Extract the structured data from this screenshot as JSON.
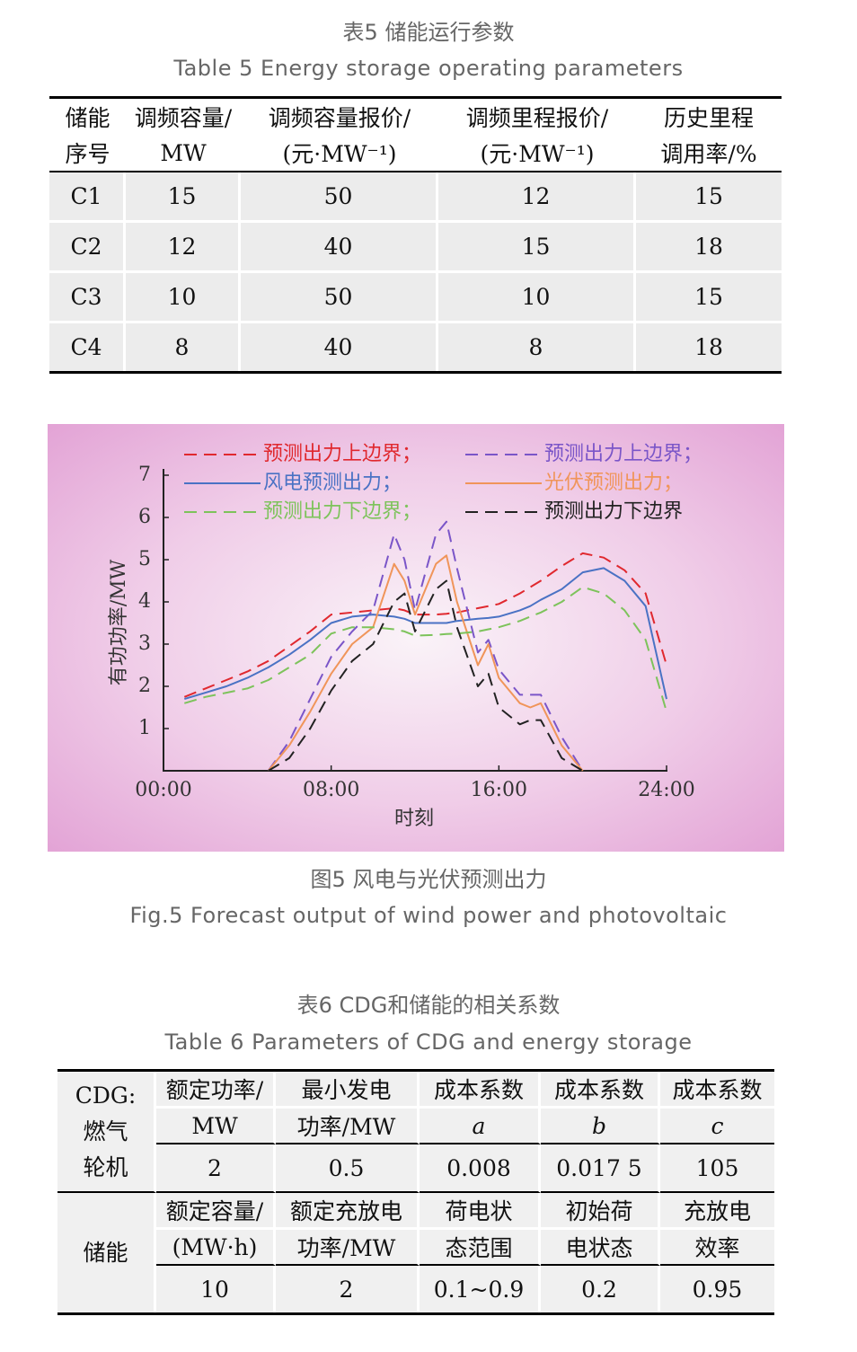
{
  "table5": {
    "caption_cn": "表5  储能运行参数",
    "caption_en": "Table 5  Energy storage operating parameters",
    "header": [
      [
        "储能",
        "调频容量/",
        "调频容量报价/",
        "调频里程报价/",
        "历史里程"
      ],
      [
        "序号",
        "MW",
        "(元·MW⁻¹)",
        "(元·MW⁻¹)",
        "调用率/%"
      ]
    ],
    "rows": [
      [
        "C1",
        15,
        50,
        12,
        15
      ],
      [
        "C2",
        12,
        40,
        15,
        18
      ],
      [
        "C3",
        10,
        50,
        10,
        15
      ],
      [
        "C4",
        8,
        40,
        8,
        18
      ]
    ]
  },
  "chart_data": {
    "type": "line",
    "xlabel": "时刻",
    "ylabel": "有功功率/MW",
    "x": [
      1,
      2,
      3,
      4,
      5,
      6,
      7,
      8,
      9,
      10,
      11,
      11.5,
      12,
      13,
      13.5,
      14,
      15,
      15.5,
      16,
      17,
      17.5,
      18,
      19,
      20,
      21,
      22,
      23,
      24
    ],
    "xlim": [
      0,
      24
    ],
    "xticks": [
      {
        "value": 0,
        "label": "00:00"
      },
      {
        "value": 8,
        "label": "08:00"
      },
      {
        "value": 16,
        "label": "16:00"
      },
      {
        "value": 24,
        "label": "24:00"
      }
    ],
    "ylim": [
      0,
      7
    ],
    "yticks": [
      1,
      2,
      3,
      4,
      5,
      6,
      7
    ],
    "series": [
      {
        "name": "预测出力上边界；",
        "color": "#e0282e",
        "dashed": true,
        "values": [
          1.75,
          1.95,
          2.15,
          2.35,
          2.6,
          2.95,
          3.3,
          3.7,
          3.75,
          3.8,
          3.85,
          3.8,
          3.7,
          3.7,
          3.72,
          3.75,
          3.85,
          3.9,
          3.95,
          4.2,
          4.35,
          4.5,
          4.85,
          5.15,
          5.05,
          4.75,
          4.2,
          2.5
        ]
      },
      {
        "name": "预测出力上边界；",
        "color": "#7a55c8",
        "dashed": true,
        "values": [
          null,
          null,
          null,
          null,
          0,
          0.7,
          1.7,
          2.7,
          3.3,
          3.8,
          5.6,
          5.0,
          3.8,
          5.6,
          5.9,
          4.8,
          2.8,
          3.1,
          2.4,
          1.8,
          1.8,
          1.8,
          0.8,
          0,
          null,
          null,
          null,
          null
        ]
      },
      {
        "name": "风电预测出力；",
        "color": "#4a72c4",
        "dashed": false,
        "values": [
          1.7,
          1.85,
          2.0,
          2.2,
          2.45,
          2.75,
          3.1,
          3.5,
          3.65,
          3.7,
          3.65,
          3.6,
          3.5,
          3.5,
          3.5,
          3.55,
          3.6,
          3.62,
          3.65,
          3.8,
          3.9,
          4.05,
          4.3,
          4.7,
          4.8,
          4.5,
          3.9,
          1.7
        ]
      },
      {
        "name": "光伏预测出力；",
        "color": "#f0955a",
        "dashed": false,
        "values": [
          null,
          null,
          null,
          null,
          0,
          0.6,
          1.4,
          2.3,
          3.0,
          3.4,
          4.9,
          4.5,
          3.7,
          4.9,
          5.1,
          4.0,
          2.5,
          3.0,
          2.2,
          1.6,
          1.5,
          1.6,
          0.6,
          0,
          null,
          null,
          null,
          null
        ]
      },
      {
        "name": "预测出力下边界；",
        "color": "#7dc35b",
        "dashed": true,
        "values": [
          1.6,
          1.75,
          1.85,
          1.95,
          2.15,
          2.45,
          2.75,
          3.25,
          3.4,
          3.4,
          3.35,
          3.3,
          3.2,
          3.22,
          3.24,
          3.25,
          3.3,
          3.35,
          3.4,
          3.55,
          3.65,
          3.75,
          4.0,
          4.35,
          4.2,
          3.8,
          3.1,
          1.4
        ]
      },
      {
        "name": "预测出力下边界",
        "color": "#222222",
        "dashed": true,
        "values": [
          null,
          null,
          null,
          null,
          0,
          0.3,
          1.0,
          1.9,
          2.6,
          3.0,
          4.0,
          4.2,
          3.3,
          4.3,
          4.5,
          3.4,
          2.0,
          2.3,
          1.5,
          1.1,
          1.2,
          1.2,
          0.3,
          0,
          null,
          null,
          null,
          null
        ]
      }
    ],
    "caption_cn": "图5  风电与光伏预测出力",
    "caption_en": "Fig.5  Forecast output of wind power and photovoltaic"
  },
  "table6": {
    "caption_cn": "表6  CDG和储能的相关系数",
    "caption_en": "Table 6  Parameters of CDG and energy storage",
    "sections": [
      {
        "label": [
          "CDG:",
          "燃气",
          "轮机"
        ],
        "header": [
          [
            "额定功率/",
            "最小发电",
            "成本系数",
            "成本系数",
            "成本系数"
          ],
          [
            "MW",
            "功率/MW",
            "a",
            "b",
            "c"
          ]
        ],
        "values": [
          2,
          0.5,
          0.008,
          "0.017 5",
          105
        ]
      },
      {
        "label": [
          "储能"
        ],
        "header": [
          [
            "额定容量/",
            "额定充放电",
            "荷电状",
            "初始荷",
            "充放电"
          ],
          [
            "(MW·h)",
            "功率/MW",
            "态范围",
            "电状态",
            "效率"
          ]
        ],
        "values": [
          10,
          2,
          "0.1~0.9",
          0.2,
          0.95
        ]
      }
    ]
  }
}
